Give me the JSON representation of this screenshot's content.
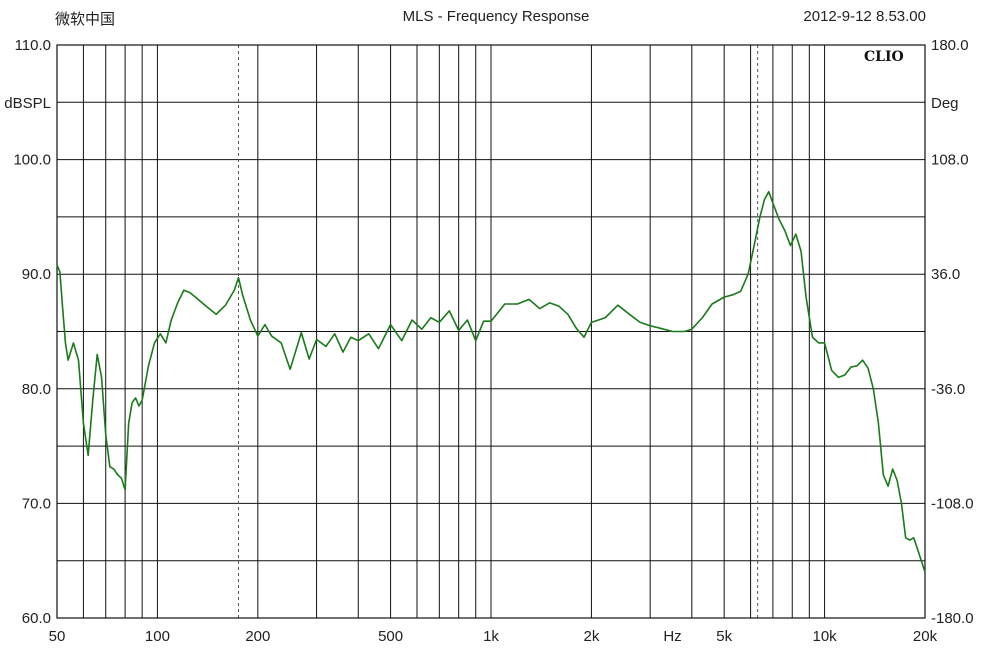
{
  "header": {
    "software": "微软中国",
    "title": "MLS - Frequency Response",
    "datetime": "2012-9-12 8.53.00"
  },
  "brand": "CLIO",
  "chart_data": {
    "type": "line",
    "title": "MLS - Frequency Response",
    "xlabel": "Hz",
    "ylabel": "dBSPL",
    "y2label": "Deg",
    "xscale": "log",
    "xlim": [
      50,
      20000
    ],
    "ylim": [
      60,
      110
    ],
    "y2lim": [
      -180,
      180
    ],
    "grid": true,
    "x_tick_labels": [
      {
        "value": 50,
        "label": "50"
      },
      {
        "value": 100,
        "label": "100"
      },
      {
        "value": 200,
        "label": "200"
      },
      {
        "value": 500,
        "label": "500"
      },
      {
        "value": 1000,
        "label": "1k"
      },
      {
        "value": 2000,
        "label": "2k"
      },
      {
        "value": 5000,
        "label": "5k"
      },
      {
        "value": 10000,
        "label": "10k"
      },
      {
        "value": 20000,
        "label": "20k"
      }
    ],
    "x_unit_label": {
      "value": 3500,
      "label": "Hz"
    },
    "y_tick_labels": [
      {
        "value": 110,
        "label": "110.0"
      },
      {
        "value": 100,
        "label": "100.0"
      },
      {
        "value": 90,
        "label": "90.0"
      },
      {
        "value": 80,
        "label": "80.0"
      },
      {
        "value": 70,
        "label": "70.0"
      },
      {
        "value": 60,
        "label": "60.0"
      }
    ],
    "y2_tick_labels": [
      {
        "value": 180,
        "label": "180.0"
      },
      {
        "value": 108,
        "label": "108.0"
      },
      {
        "value": 36,
        "label": "36.0"
      },
      {
        "value": -36,
        "label": "-36.0"
      },
      {
        "value": -108,
        "label": "-108.0"
      },
      {
        "value": -180,
        "label": "-180.0"
      }
    ],
    "markers": [
      175,
      6300
    ],
    "series": [
      {
        "color": "#1a7a1a",
        "x": [
          50,
          51,
          52,
          53,
          54,
          56,
          58,
          60,
          62,
          64,
          66,
          68,
          70,
          72,
          74,
          76,
          78,
          80,
          82,
          84,
          86,
          88,
          90,
          94,
          98,
          102,
          106,
          110,
          115,
          120,
          125,
          130,
          140,
          150,
          160,
          170,
          175,
          180,
          190,
          200,
          210,
          220,
          235,
          250,
          270,
          285,
          300,
          320,
          340,
          360,
          380,
          400,
          430,
          460,
          500,
          540,
          580,
          620,
          660,
          700,
          750,
          800,
          850,
          900,
          950,
          1000,
          1100,
          1200,
          1300,
          1400,
          1500,
          1600,
          1700,
          1800,
          1900,
          2000,
          2200,
          2400,
          2600,
          2800,
          3000,
          3200,
          3500,
          3800,
          4000,
          4300,
          4600,
          5000,
          5300,
          5600,
          5900,
          6200,
          6400,
          6600,
          6800,
          7000,
          7300,
          7600,
          7900,
          8200,
          8500,
          8800,
          9200,
          9600,
          10000,
          10500,
          11000,
          11500,
          12000,
          12500,
          13000,
          13500,
          14000,
          14500,
          15000,
          15500,
          16000,
          16500,
          17000,
          17500,
          18000,
          18500,
          19000,
          19500,
          20000
        ],
        "y": [
          90.8,
          90.2,
          87.0,
          84.0,
          82.5,
          84.0,
          82.5,
          77.0,
          74.2,
          79.0,
          83.0,
          81.0,
          76.0,
          73.2,
          73.0,
          72.5,
          72.2,
          71.2,
          77.0,
          78.8,
          79.2,
          78.5,
          79.0,
          82.0,
          84.0,
          84.8,
          84.0,
          86.0,
          87.5,
          88.6,
          88.4,
          88.0,
          87.2,
          86.5,
          87.3,
          88.6,
          89.7,
          88.2,
          86.0,
          84.6,
          85.6,
          84.6,
          84.0,
          81.7,
          84.9,
          82.6,
          84.3,
          83.7,
          84.8,
          83.2,
          84.5,
          84.2,
          84.8,
          83.5,
          85.6,
          84.2,
          86.0,
          85.2,
          86.2,
          85.8,
          86.8,
          85.1,
          86.0,
          84.2,
          85.9,
          85.9,
          87.4,
          87.4,
          87.8,
          87.0,
          87.5,
          87.2,
          86.5,
          85.3,
          84.5,
          85.8,
          86.2,
          87.3,
          86.5,
          85.8,
          85.5,
          85.3,
          85.0,
          85.0,
          85.2,
          86.2,
          87.4,
          88.0,
          88.2,
          88.5,
          90.0,
          93.0,
          95.0,
          96.5,
          97.2,
          96.2,
          94.8,
          93.8,
          92.5,
          93.5,
          92.0,
          88.0,
          84.5,
          84.0,
          84.0,
          81.6,
          81.0,
          81.2,
          81.9,
          82.0,
          82.5,
          81.8,
          80.0,
          77.0,
          72.5,
          71.5,
          73.0,
          72.0,
          70.0,
          67.0,
          66.8,
          67.0,
          66.0,
          65.0,
          64.0
        ]
      }
    ]
  }
}
